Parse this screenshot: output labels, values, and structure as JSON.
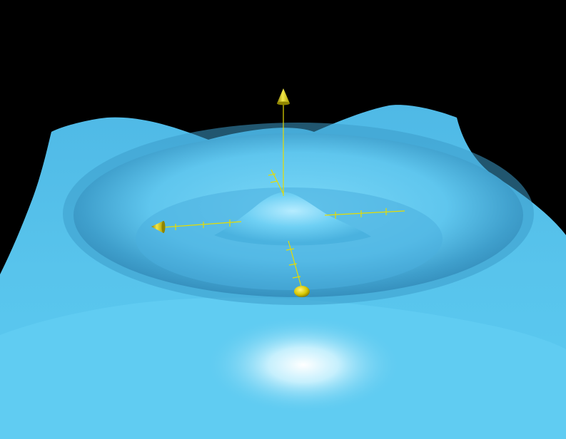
{
  "scene": {
    "background_color": "#000000",
    "surface_color": "#5ac8ef",
    "surface_shadow_color": "#2a7aa6",
    "surface_highlight_color": "#ffffff",
    "axis_color": "#e6dc00",
    "axis_arrow_color": "#d9cf00",
    "axes": [
      {
        "icon": "arrow-cone-icon",
        "direction": "up"
      },
      {
        "icon": "arrow-cone-icon",
        "direction": "left"
      },
      {
        "icon": "axis-line",
        "direction": "right"
      },
      {
        "icon": "sphere-marker-icon",
        "direction": "down"
      }
    ]
  }
}
